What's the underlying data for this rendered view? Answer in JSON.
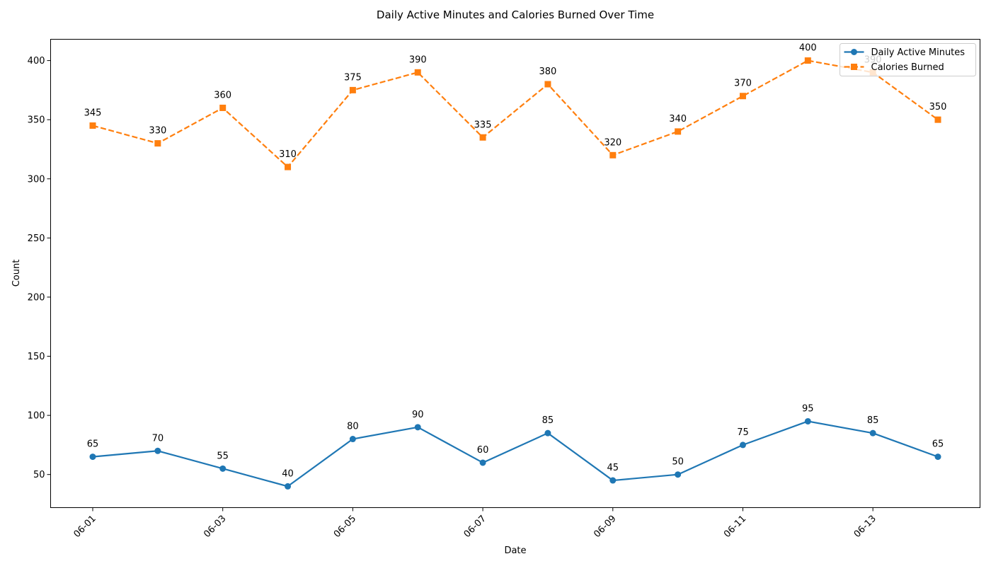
{
  "chart_data": {
    "type": "line",
    "title": "Daily Active Minutes and Calories Burned Over Time",
    "xlabel": "Date",
    "ylabel": "Count",
    "x": [
      "06-01",
      "06-02",
      "06-03",
      "06-04",
      "06-05",
      "06-06",
      "06-07",
      "06-08",
      "06-09",
      "06-10",
      "06-11",
      "06-12",
      "06-13",
      "06-14"
    ],
    "x_tick_labels": [
      "06-01",
      "06-03",
      "06-05",
      "06-07",
      "06-09",
      "06-11",
      "06-13"
    ],
    "ylim": [
      22,
      418
    ],
    "y_ticks": [
      50,
      100,
      150,
      200,
      250,
      300,
      350,
      400
    ],
    "grid": false,
    "legend_position": "top-right",
    "series": [
      {
        "name": "Daily Active Minutes",
        "values": [
          65,
          70,
          55,
          40,
          80,
          90,
          60,
          85,
          45,
          50,
          75,
          95,
          85,
          65
        ],
        "color": "#1f77b4",
        "marker": "circle",
        "line_style": "solid"
      },
      {
        "name": "Calories Burned",
        "values": [
          345,
          330,
          360,
          310,
          375,
          390,
          335,
          380,
          320,
          340,
          370,
          400,
          390,
          350
        ],
        "color": "#ff7f0e",
        "marker": "square",
        "line_style": "dashed"
      }
    ]
  }
}
